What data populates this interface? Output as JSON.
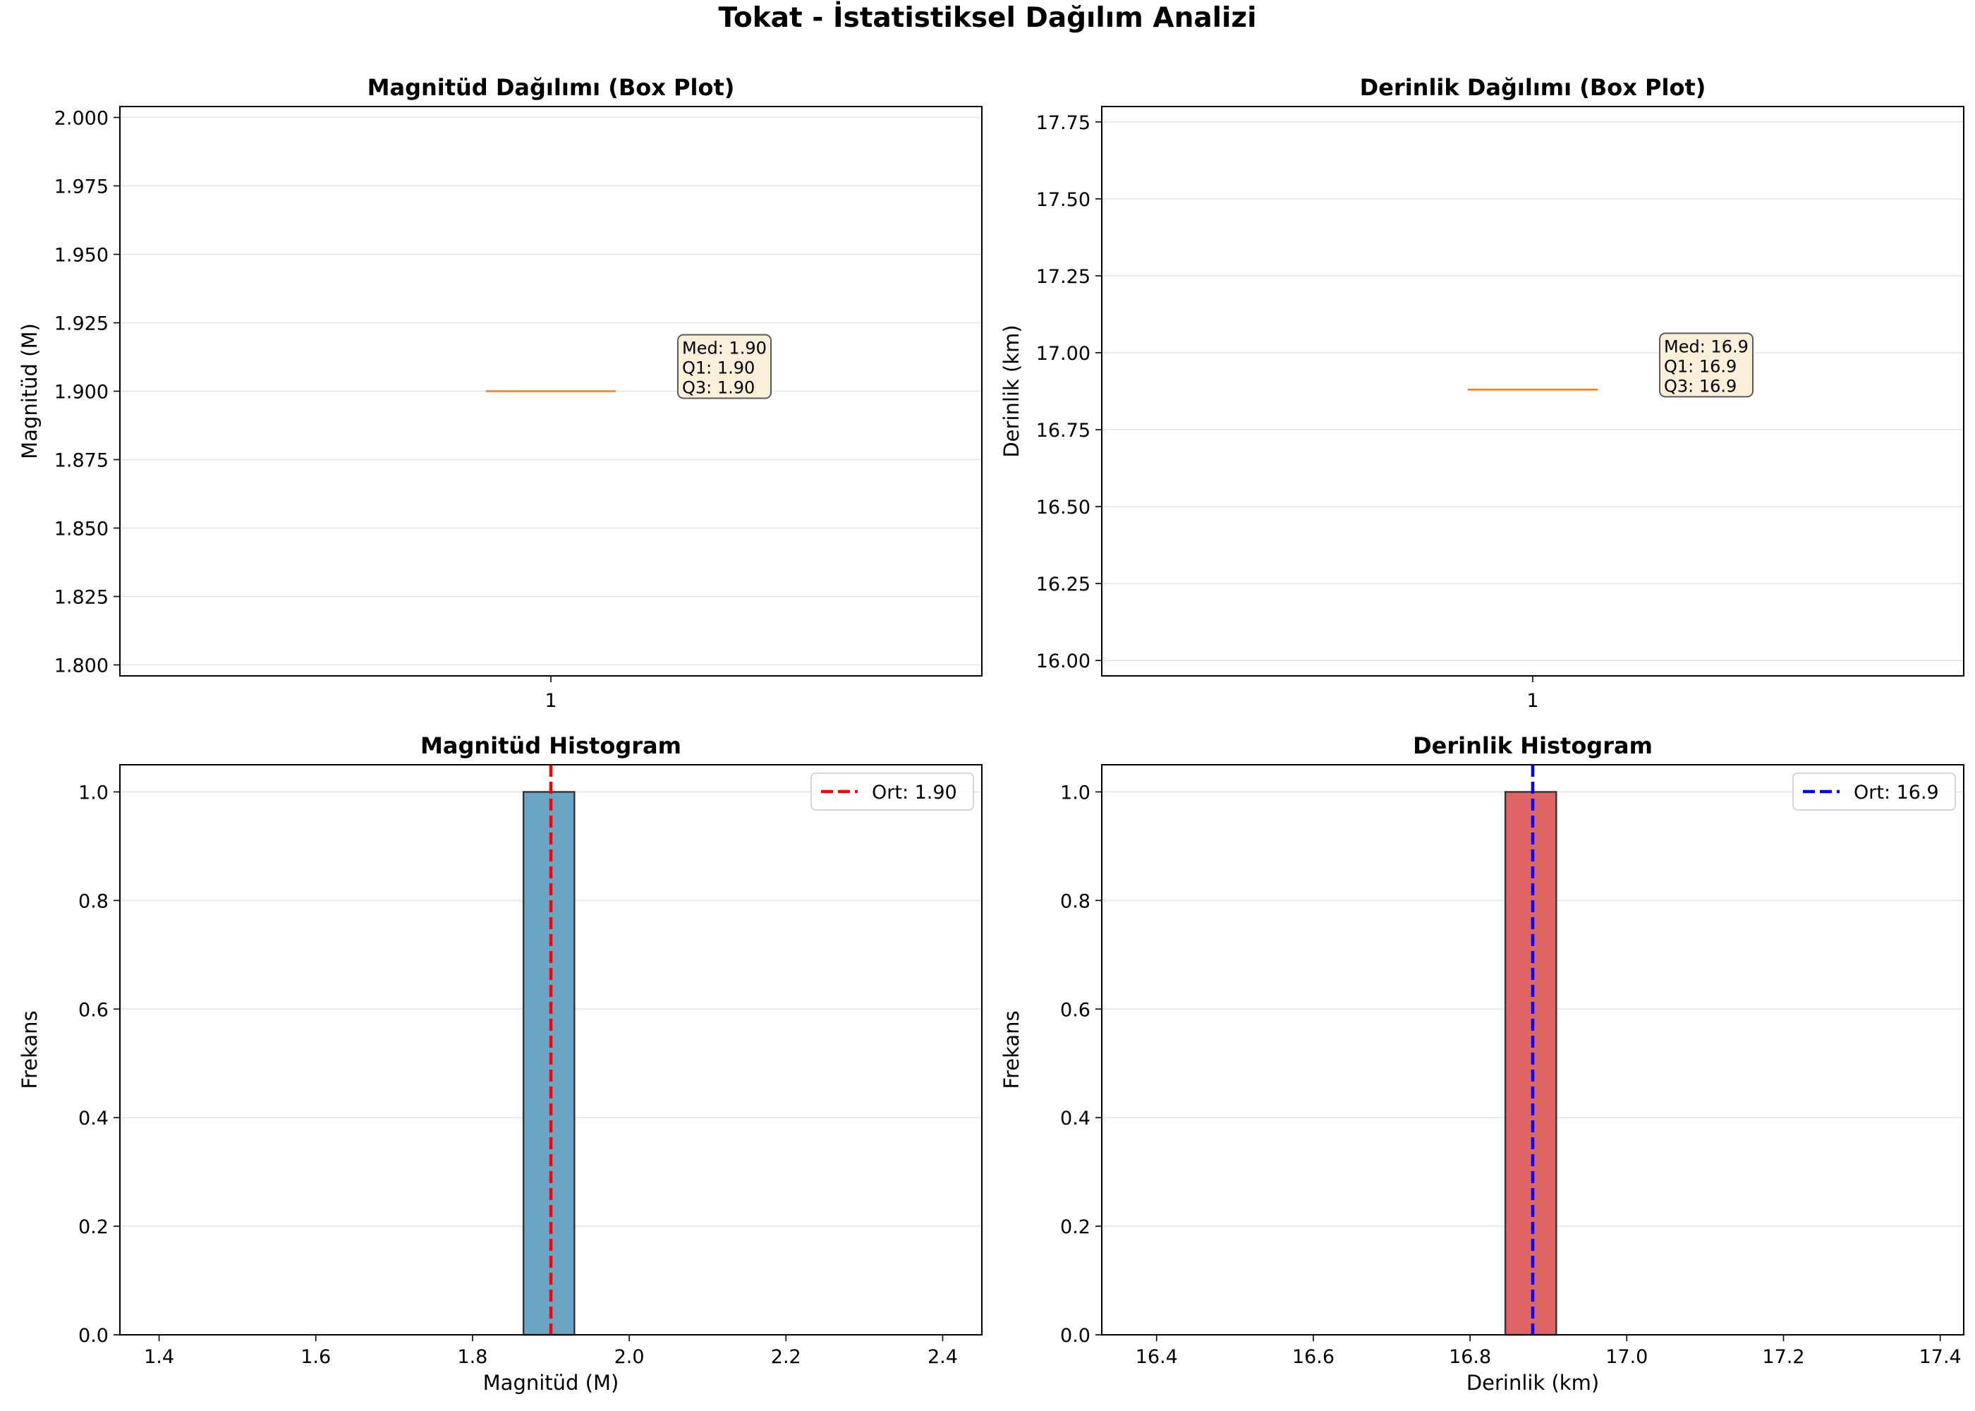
{
  "figure": {
    "title": "Tokat - İstatistiksel Dağılım Analizi"
  },
  "colors": {
    "median_line": "#ff7f0e",
    "mag_bar": "#6aa5c3",
    "depth_bar": "#e06666",
    "mag_mean_line": "#ff0000",
    "depth_mean_line": "#0000ff",
    "annotation_bg": "#fbefd9"
  },
  "chart_data": [
    {
      "type": "box",
      "title": "Magnitüd Dağılımı (Box Plot)",
      "xlabel": "",
      "ylabel": "Magnitüd (M)",
      "categories": [
        "1"
      ],
      "median": 1.9,
      "q1": 1.9,
      "q3": 1.9,
      "whisker_low": 1.9,
      "whisker_high": 1.9,
      "ylim": [
        1.796,
        2.004
      ],
      "yticks": [
        1.8,
        1.825,
        1.85,
        1.875,
        1.9,
        1.925,
        1.95,
        1.975,
        2.0
      ],
      "ytick_labels": [
        "1.800",
        "1.825",
        "1.850",
        "1.875",
        "1.900",
        "1.925",
        "1.950",
        "1.975",
        "2.000"
      ],
      "annotation": [
        "Med: 1.90",
        "Q1: 1.90",
        "Q3: 1.90"
      ],
      "grid": "y"
    },
    {
      "type": "box",
      "title": "Derinlik Dağılımı (Box Plot)",
      "xlabel": "",
      "ylabel": "Derinlik (km)",
      "categories": [
        "1"
      ],
      "median": 16.88,
      "q1": 16.88,
      "q3": 16.88,
      "whisker_low": 16.88,
      "whisker_high": 16.88,
      "ylim": [
        15.95,
        17.8
      ],
      "yticks": [
        16.0,
        16.25,
        16.5,
        16.75,
        17.0,
        17.25,
        17.5,
        17.75
      ],
      "ytick_labels": [
        "16.00",
        "16.25",
        "16.50",
        "16.75",
        "17.00",
        "17.25",
        "17.50",
        "17.75"
      ],
      "annotation": [
        "Med: 16.9",
        "Q1: 16.9",
        "Q3: 16.9"
      ],
      "grid": "y"
    },
    {
      "type": "bar",
      "title": "Magnitüd Histogram",
      "xlabel": "Magnitüd (M)",
      "ylabel": "Frekans",
      "bins": [
        {
          "x0": 1.865,
          "x1": 1.93,
          "count": 1
        }
      ],
      "mean": 1.9,
      "legend": "Ort: 1.90",
      "legend_position": "top-right",
      "xlim": [
        1.35,
        2.45
      ],
      "ylim": [
        0,
        1.05
      ],
      "xticks": [
        1.4,
        1.6,
        1.8,
        2.0,
        2.2,
        2.4
      ],
      "xtick_labels": [
        "1.4",
        "1.6",
        "1.8",
        "2.0",
        "2.2",
        "2.4"
      ],
      "yticks": [
        0,
        0.2,
        0.4,
        0.6,
        0.8,
        1.0
      ],
      "ytick_labels": [
        "0.0",
        "0.2",
        "0.4",
        "0.6",
        "0.8",
        "1.0"
      ],
      "grid": "y"
    },
    {
      "type": "bar",
      "title": "Derinlik Histogram",
      "xlabel": "Derinlik (km)",
      "ylabel": "Frekans",
      "bins": [
        {
          "x0": 16.845,
          "x1": 16.91,
          "count": 1
        }
      ],
      "mean": 16.88,
      "legend": "Ort: 16.9",
      "legend_position": "top-right",
      "xlim": [
        16.33,
        17.43
      ],
      "ylim": [
        0,
        1.05
      ],
      "xticks": [
        16.4,
        16.6,
        16.8,
        17.0,
        17.2,
        17.4
      ],
      "xtick_labels": [
        "16.4",
        "16.6",
        "16.8",
        "17.0",
        "17.2",
        "17.4"
      ],
      "yticks": [
        0,
        0.2,
        0.4,
        0.6,
        0.8,
        1.0
      ],
      "ytick_labels": [
        "0.0",
        "0.2",
        "0.4",
        "0.6",
        "0.8",
        "1.0"
      ],
      "grid": "y"
    }
  ]
}
